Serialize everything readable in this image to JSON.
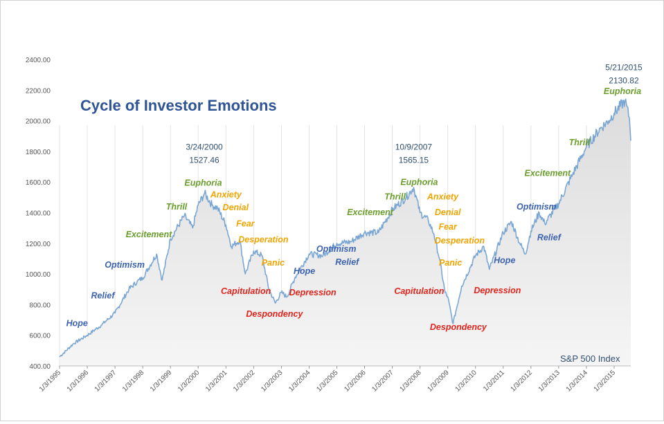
{
  "colors": {
    "hope": "#3c62b0",
    "green": "#6a9e2c",
    "anxious": "#f0a400",
    "red": "#e0241c",
    "line": "#7aa6d4",
    "fill": "#dcdcdc",
    "title": "#2f5496"
  },
  "chart_data": {
    "type": "area",
    "title": "Cycle of Investor Emotions",
    "series_label": "S&P 500 Index",
    "xlabel": "",
    "ylabel": "",
    "ylim": [
      400,
      2400
    ],
    "yticks": [
      "400.00",
      "600.00",
      "800.00",
      "1000.00",
      "1200.00",
      "1400.00",
      "1600.00",
      "1800.00",
      "2000.00",
      "2200.00",
      "2400.00"
    ],
    "xticks": [
      "1/3/1995",
      "1/3/1996",
      "1/3/1997",
      "1/3/1998",
      "1/3/1999",
      "1/3/2000",
      "1/3/2001",
      "1/3/2002",
      "1/3/2003",
      "1/3/2004",
      "1/3/2005",
      "1/3/2006",
      "1/3/2007",
      "1/3/2008",
      "1/3/2009",
      "1/3/2010",
      "1/3/2011",
      "1/3/2012",
      "1/3/2013",
      "1/3/2014",
      "1/3/2015"
    ],
    "x": [
      1995.0,
      1995.5,
      1996.0,
      1996.5,
      1997.0,
      1997.5,
      1997.8,
      1998.0,
      1998.5,
      1998.7,
      1999.0,
      1999.5,
      1999.8,
      2000.0,
      2000.23,
      2000.5,
      2000.7,
      2001.0,
      2001.2,
      2001.5,
      2001.7,
      2002.0,
      2002.3,
      2002.55,
      2002.78,
      2003.0,
      2003.2,
      2003.5,
      2004.0,
      2004.5,
      2005.0,
      2005.5,
      2006.0,
      2006.5,
      2007.0,
      2007.5,
      2007.77,
      2008.0,
      2008.3,
      2008.5,
      2008.7,
      2008.9,
      2009.0,
      2009.19,
      2009.5,
      2010.0,
      2010.3,
      2010.5,
      2011.0,
      2011.3,
      2011.6,
      2011.8,
      2012.0,
      2012.3,
      2012.5,
      2013.0,
      2013.5,
      2014.0,
      2014.5,
      2014.8,
      2015.0,
      2015.39,
      2015.55,
      2015.6
    ],
    "values": [
      459,
      545,
      600,
      665,
      745,
      900,
      950,
      975,
      1130,
      960,
      1230,
      1380,
      1300,
      1450,
      1527,
      1450,
      1430,
      1320,
      1180,
      1220,
      1000,
      1150,
      1120,
      900,
      810,
      880,
      850,
      980,
      1130,
      1120,
      1200,
      1210,
      1270,
      1270,
      1420,
      1500,
      1565,
      1400,
      1350,
      1260,
      1100,
      880,
      850,
      676,
      920,
      1120,
      1180,
      1030,
      1270,
      1340,
      1200,
      1130,
      1280,
      1400,
      1330,
      1460,
      1650,
      1830,
      1950,
      2000,
      2050,
      2131,
      2020,
      1870
    ],
    "annotations": [
      {
        "text": "Hope",
        "x": 1995.63,
        "y": 660,
        "group": "hope"
      },
      {
        "text": "Relief",
        "x": 1996.56,
        "y": 840,
        "group": "hope"
      },
      {
        "text": "Optimism",
        "x": 1997.35,
        "y": 1040,
        "group": "hope"
      },
      {
        "text": "Excitement",
        "x": 1998.22,
        "y": 1240,
        "group": "green"
      },
      {
        "text": "Thrill",
        "x": 1999.22,
        "y": 1420,
        "group": "green"
      },
      {
        "text": "Euphoria",
        "x": 2000.18,
        "y": 1575,
        "group": "green"
      },
      {
        "text": "Anxiety",
        "x": 2001.0,
        "y": 1500,
        "group": "anxious"
      },
      {
        "text": "Denial",
        "x": 2001.35,
        "y": 1415,
        "group": "anxious"
      },
      {
        "text": "Fear",
        "x": 2001.7,
        "y": 1310,
        "group": "anxious"
      },
      {
        "text": "Desperation",
        "x": 2002.35,
        "y": 1205,
        "group": "anxious"
      },
      {
        "text": "Panic",
        "x": 2002.7,
        "y": 1055,
        "group": "anxious"
      },
      {
        "text": "Capitulation",
        "x": 2001.72,
        "y": 870,
        "group": "red"
      },
      {
        "text": "Despondency",
        "x": 2002.75,
        "y": 720,
        "group": "red"
      },
      {
        "text": "Depression",
        "x": 2004.13,
        "y": 860,
        "group": "red"
      },
      {
        "text": "Hope",
        "x": 2003.83,
        "y": 1000,
        "group": "hope"
      },
      {
        "text": "Optimism",
        "x": 2004.98,
        "y": 1145,
        "group": "hope"
      },
      {
        "text": "Relief",
        "x": 2005.37,
        "y": 1060,
        "group": "hope"
      },
      {
        "text": "Excitement",
        "x": 2006.2,
        "y": 1385,
        "group": "green"
      },
      {
        "text": "Thrill",
        "x": 2007.1,
        "y": 1485,
        "group": "green"
      },
      {
        "text": "Euphoria",
        "x": 2007.97,
        "y": 1580,
        "group": "green"
      },
      {
        "text": "Anxiety",
        "x": 2008.82,
        "y": 1485,
        "group": "anxious"
      },
      {
        "text": "Denial",
        "x": 2009.0,
        "y": 1385,
        "group": "anxious"
      },
      {
        "text": "Fear",
        "x": 2009.0,
        "y": 1290,
        "group": "anxious"
      },
      {
        "text": "Desperation",
        "x": 2009.43,
        "y": 1200,
        "group": "anxious"
      },
      {
        "text": "Panic",
        "x": 2009.1,
        "y": 1055,
        "group": "anxious"
      },
      {
        "text": "Capitulation",
        "x": 2007.97,
        "y": 870,
        "group": "red"
      },
      {
        "text": "Despondency",
        "x": 2009.38,
        "y": 635,
        "group": "red"
      },
      {
        "text": "Depression",
        "x": 2010.79,
        "y": 875,
        "group": "red"
      },
      {
        "text": "Hope",
        "x": 2011.05,
        "y": 1070,
        "group": "hope"
      },
      {
        "text": "Relief",
        "x": 2012.65,
        "y": 1220,
        "group": "hope"
      },
      {
        "text": "Optimism",
        "x": 2012.2,
        "y": 1420,
        "group": "hope"
      },
      {
        "text": "Excitement",
        "x": 2012.6,
        "y": 1640,
        "group": "green"
      },
      {
        "text": "Thrill",
        "x": 2013.75,
        "y": 1840,
        "group": "green"
      },
      {
        "text": "Euphoria",
        "x": 2015.3,
        "y": 2175,
        "group": "green"
      }
    ],
    "peaks": [
      {
        "date": "3/24/2000",
        "value": "1527.46",
        "x": 2000.22,
        "y": 1810
      },
      {
        "date": "10/9/2007",
        "value": "1565.15",
        "x": 2007.77,
        "y": 1810
      },
      {
        "date": "5/21/2015",
        "value": "2130.82",
        "x": 2015.35,
        "y": 2330
      }
    ]
  }
}
